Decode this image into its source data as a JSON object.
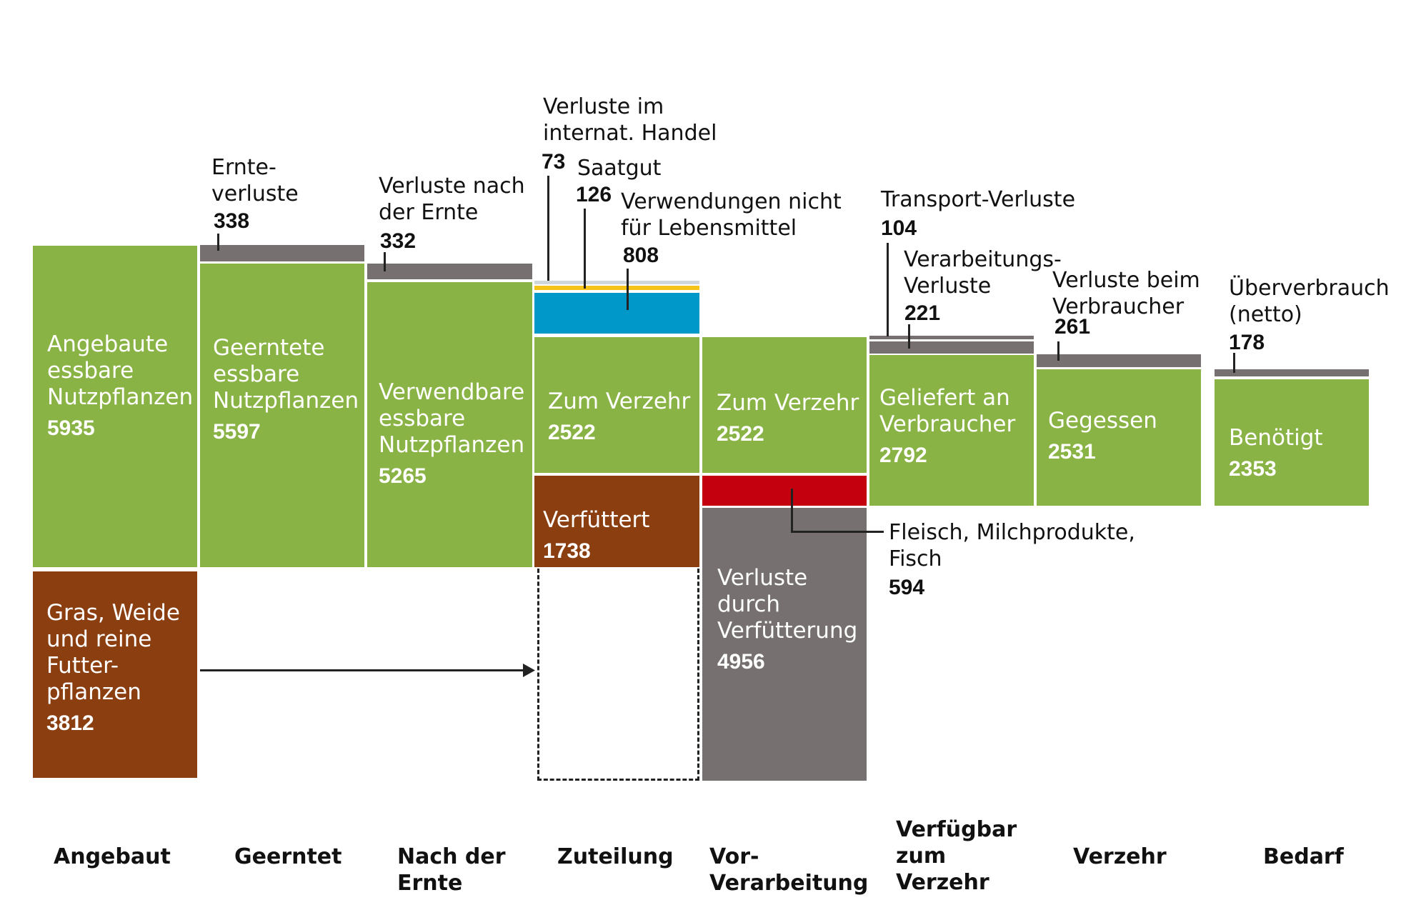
{
  "stages": [
    {
      "label": "Angebaut"
    },
    {
      "label": "Geerntet"
    },
    {
      "label": "Nach der Ernte"
    },
    {
      "label": "Zuteilung"
    },
    {
      "label": "Vor-\nVerarbeitung"
    },
    {
      "label": "Verfügbar\nzum\nVerzehr"
    },
    {
      "label": "Verzehr"
    },
    {
      "label": "Bedarf"
    }
  ],
  "blocks": {
    "angebaut": {
      "label": "Angebaute\nessbare\nNutzpflanzen",
      "value": "5935",
      "color": "#8ab345"
    },
    "gras": {
      "label": "Gras, Weide\nund reine\nFutter-\npflanzen",
      "value": "3812",
      "color": "#8b3e10"
    },
    "geerntet": {
      "label": "Geerntete\nessbare\nNutzpflanzen",
      "value": "5597",
      "color": "#8ab345"
    },
    "verwendbar": {
      "label": "Verwendbare\nessbare\nNutzpflanzen",
      "value": "5265",
      "color": "#8ab345"
    },
    "zum_verzehr_1": {
      "label": "Zum Verzehr",
      "value": "2522",
      "color": "#8ab345"
    },
    "verfuettert": {
      "label": "Verfüttert",
      "value": "1738",
      "color": "#8b3e10"
    },
    "zum_verzehr_2": {
      "label": "Zum Verzehr",
      "value": "2522",
      "color": "#8ab345"
    },
    "verluste_fuetterung": {
      "label": "Verluste\ndurch\nVerfütterung",
      "value": "4956",
      "color": "#767170"
    },
    "geliefert": {
      "label": "Geliefert an\nVerbraucher",
      "value": "2792",
      "color": "#8ab345"
    },
    "gegessen": {
      "label": "Gegessen",
      "value": "2531",
      "color": "#8ab345"
    },
    "benoetigt": {
      "label": "Benötigt",
      "value": "2353",
      "color": "#8ab345"
    }
  },
  "callouts": {
    "ernteverluste": {
      "label": "Ernte-\nverluste",
      "value": "338"
    },
    "nach_ernte": {
      "label": "Verluste nach\nder Ernte",
      "value": "332"
    },
    "handel": {
      "label": "Verluste im\ninternat. Handel",
      "value": "73"
    },
    "saatgut": {
      "label": "Saatgut",
      "value": "126"
    },
    "nicht_lebensmittel": {
      "label": "Verwendungen nicht\nfür Lebensmittel",
      "value": "808"
    },
    "transport": {
      "label": "Transport-Verluste",
      "value": "104"
    },
    "verarbeitung": {
      "label": "Verarbeitungs-\nVerluste",
      "value": "221"
    },
    "verbraucher": {
      "label": "Verluste beim\nVerbraucher",
      "value": "261"
    },
    "ueberverbrauch": {
      "label": "Überverbrauch\n(netto)",
      "value": "178"
    },
    "fleisch": {
      "label": "Fleisch, Milchprodukte,\nFisch",
      "value": "594"
    }
  },
  "colors": {
    "edible": "#8ab345",
    "feed": "#8b3e10",
    "loss": "#767170",
    "animal_products": "#c4000e",
    "non_food": "#0098c9",
    "seed": "#f5c31a",
    "trade": "#cfd7da"
  }
}
